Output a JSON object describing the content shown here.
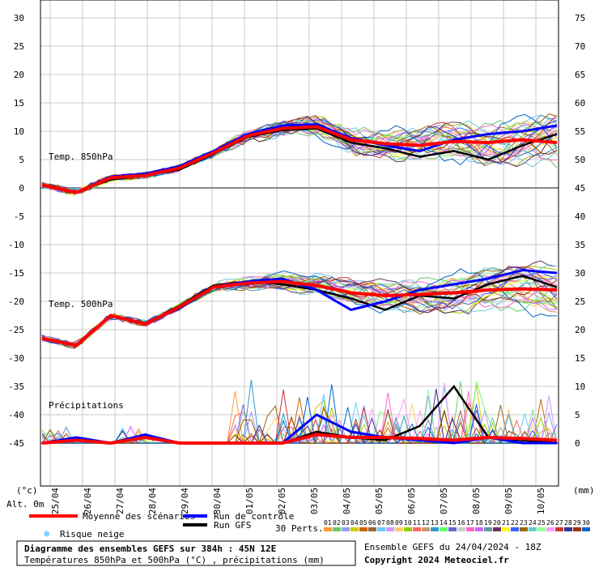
{
  "chart_data": {
    "type": "line",
    "left_axis": {
      "ticks": [
        30,
        25,
        20,
        15,
        10,
        5,
        0,
        -5,
        -10,
        -15,
        -20,
        -25,
        -30,
        -35,
        -40,
        -45
      ],
      "ylim": [
        -45,
        30
      ],
      "unit_label": "(°c)",
      "alt_label": "Alt. 0m"
    },
    "right_axis": {
      "ticks": [
        75,
        70,
        65,
        60,
        55,
        50,
        45,
        40,
        35,
        30,
        25,
        20,
        15,
        10,
        5,
        0
      ],
      "ylim": [
        0,
        75
      ],
      "unit_label": "(mm)"
    },
    "x_tick_labels": [
      "25/04",
      "26/04",
      "27/04",
      "28/04",
      "29/04",
      "30/04",
      "01/05",
      "02/05",
      "03/05",
      "04/05",
      "05/05",
      "06/05",
      "07/05",
      "08/05",
      "09/05",
      "10/05"
    ],
    "annotations": [
      "Temp. 850hPa",
      "Temp. 500hPa",
      "Précipitations"
    ],
    "series": [
      {
        "name": "Moyenne des scénarios",
        "color": "#ff0000",
        "t850": [
          0.5,
          -0.8,
          1.8,
          2.2,
          3.5,
          6.2,
          9.2,
          10.5,
          10.8,
          8.5,
          7.8,
          7.5,
          8.2,
          8.0,
          8.5,
          8.0
        ],
        "t500": [
          -26.5,
          -27.8,
          -22.5,
          -24.0,
          -21.0,
          -17.5,
          -16.8,
          -16.5,
          -17.2,
          -18.5,
          -19.0,
          -18.8,
          -18.5,
          -18.0,
          -17.8,
          -18.0
        ],
        "precip": [
          0,
          0.5,
          0,
          1,
          0,
          0,
          0,
          0,
          1.5,
          1,
          1,
          0.8,
          0.5,
          1,
          0.8,
          0.5
        ]
      },
      {
        "name": "Run de contrôle",
        "color": "#0000ff",
        "t850": [
          0.5,
          -0.8,
          2.0,
          2.5,
          3.8,
          6.5,
          9.5,
          11.0,
          11.2,
          8.8,
          7.5,
          6.5,
          8.5,
          9.5,
          10.0,
          11.0
        ],
        "t500": [
          -26.5,
          -27.8,
          -22.5,
          -24.0,
          -21.2,
          -17.5,
          -16.5,
          -16.0,
          -18.0,
          -21.5,
          -20.0,
          -18.0,
          -17.0,
          -16.0,
          -14.5,
          -15.0
        ],
        "precip": [
          0,
          1,
          0,
          1.5,
          0,
          0,
          0,
          0,
          5,
          2,
          1,
          0.5,
          0,
          1,
          0,
          0
        ]
      },
      {
        "name": "Run GFS",
        "color": "#000000",
        "t850": [
          0.5,
          -0.8,
          1.5,
          2.2,
          3.2,
          6.0,
          9.0,
          10.2,
          10.5,
          8.0,
          7.0,
          5.5,
          6.5,
          5.0,
          7.5,
          9.5
        ],
        "t500": [
          -26.5,
          -27.8,
          -22.5,
          -24.0,
          -20.8,
          -17.2,
          -16.5,
          -17.0,
          -18.0,
          -19.5,
          -21.5,
          -19.0,
          -19.5,
          -17.0,
          -15.5,
          -17.5
        ],
        "precip": [
          0,
          0.5,
          0,
          1,
          0,
          0,
          0,
          0,
          2,
          1,
          0.5,
          3,
          10,
          1,
          0.5,
          0
        ]
      }
    ],
    "perturbation_count_label": "30 Perts.",
    "perturbation_ids": [
      "01",
      "02",
      "03",
      "04",
      "05",
      "06",
      "07",
      "08",
      "09",
      "10",
      "11",
      "12",
      "13",
      "14",
      "15",
      "16",
      "17",
      "18",
      "19",
      "20",
      "21",
      "22",
      "23",
      "24",
      "25",
      "26",
      "27",
      "28",
      "29",
      "30"
    ],
    "perturbation_colors": [
      "#ff9933",
      "#66cc66",
      "#9999ff",
      "#cccc00",
      "#cc6600",
      "#996633",
      "#66ccff",
      "#cc99ff",
      "#ffcc66",
      "#99cc00",
      "#ff6666",
      "#cc9966",
      "#3399cc",
      "#66ff66",
      "#6666cc",
      "#cccccc",
      "#ff66cc",
      "#cc66ff",
      "#669999",
      "#663366",
      "#ffff00",
      "#3366ff",
      "#996600",
      "#66cccc",
      "#99ff99",
      "#ff99ff",
      "#cc3333",
      "#333399",
      "#993300",
      "#0066cc"
    ]
  },
  "legend": {
    "mean": "Moyenne des scénarios",
    "control": "Run de contrôle",
    "gfs": "Run GFS",
    "snow": "Risque neige"
  },
  "footer": {
    "title": "Diagramme des ensembles GEFS sur 384h : 45N 12E",
    "subtitle": "Températures 850hPa et 500hPa (°C) , précipitations (mm)",
    "run_info": "Ensemble GEFS du 24/04/2024 - 18Z",
    "copyright": "Copyright 2024 Meteociel.fr"
  }
}
